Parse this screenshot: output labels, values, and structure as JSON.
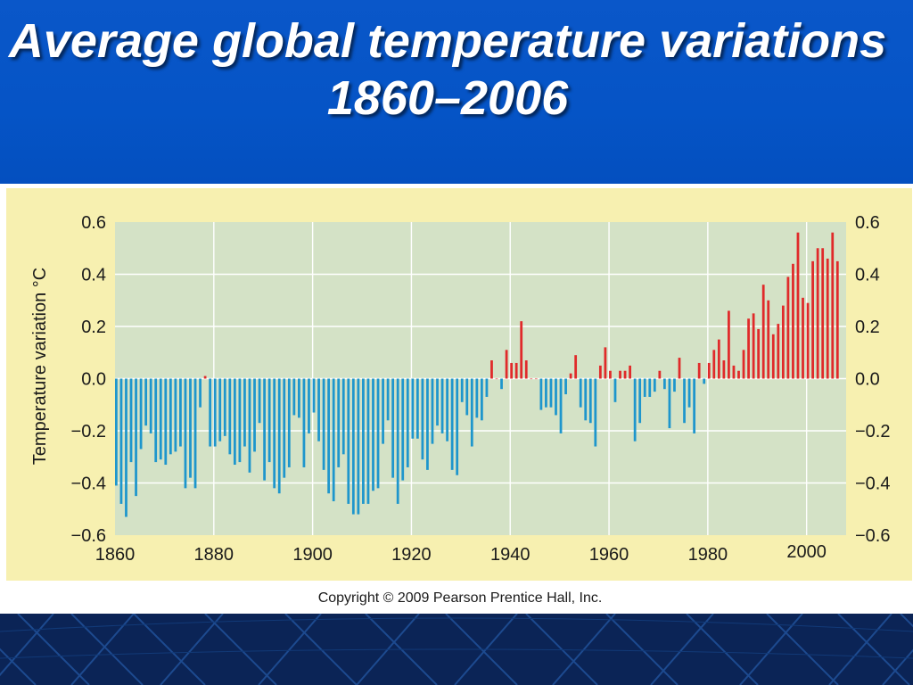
{
  "title": "Average global temperature variations 1860–2006",
  "copyright": "Copyright © 2009 Pearson Prentice Hall, Inc.",
  "colors": {
    "header_blue": "#0554c6",
    "chart_background": "#f7f0b0",
    "plot_background": "#d4e2c6",
    "negative_bar": "#1e96cc",
    "positive_bar": "#e02a2a"
  },
  "chart_data": {
    "type": "bar",
    "title": "",
    "xlabel": "",
    "ylabel": "Temperature variation °C",
    "xlim": [
      1860,
      2008
    ],
    "ylim": [
      -0.6,
      0.6
    ],
    "grid": true,
    "x_ticks_bottom": [
      1860,
      1880,
      1900,
      1920,
      1940,
      1960,
      1980
    ],
    "x_tick_extra": 2000,
    "y_ticks": [
      "0.6",
      "0.4",
      "0.2",
      "0.0",
      "−0.2",
      "−0.4",
      "−0.6"
    ],
    "y_tick_values": [
      0.6,
      0.4,
      0.2,
      0.0,
      -0.2,
      -0.4,
      -0.6
    ],
    "years": [
      1860,
      1861,
      1862,
      1863,
      1864,
      1865,
      1866,
      1867,
      1868,
      1869,
      1870,
      1871,
      1872,
      1873,
      1874,
      1875,
      1876,
      1877,
      1878,
      1879,
      1880,
      1881,
      1882,
      1883,
      1884,
      1885,
      1886,
      1887,
      1888,
      1889,
      1890,
      1891,
      1892,
      1893,
      1894,
      1895,
      1896,
      1897,
      1898,
      1899,
      1900,
      1901,
      1902,
      1903,
      1904,
      1905,
      1906,
      1907,
      1908,
      1909,
      1910,
      1911,
      1912,
      1913,
      1914,
      1915,
      1916,
      1917,
      1918,
      1919,
      1920,
      1921,
      1922,
      1923,
      1924,
      1925,
      1926,
      1927,
      1928,
      1929,
      1930,
      1931,
      1932,
      1933,
      1934,
      1935,
      1936,
      1937,
      1938,
      1939,
      1940,
      1941,
      1942,
      1943,
      1944,
      1945,
      1946,
      1947,
      1948,
      1949,
      1950,
      1951,
      1952,
      1953,
      1954,
      1955,
      1956,
      1957,
      1958,
      1959,
      1960,
      1961,
      1962,
      1963,
      1964,
      1965,
      1966,
      1967,
      1968,
      1969,
      1970,
      1971,
      1972,
      1973,
      1974,
      1975,
      1976,
      1977,
      1978,
      1979,
      1980,
      1981,
      1982,
      1983,
      1984,
      1985,
      1986,
      1987,
      1988,
      1989,
      1990,
      1991,
      1992,
      1993,
      1994,
      1995,
      1996,
      1997,
      1998,
      1999,
      2000,
      2001,
      2002,
      2003,
      2004,
      2005,
      2006
    ],
    "values": [
      -0.41,
      -0.48,
      -0.53,
      -0.32,
      -0.45,
      -0.27,
      -0.18,
      -0.21,
      -0.32,
      -0.31,
      -0.33,
      -0.29,
      -0.28,
      -0.26,
      -0.42,
      -0.38,
      -0.42,
      -0.11,
      0.01,
      -0.26,
      -0.26,
      -0.24,
      -0.22,
      -0.29,
      -0.33,
      -0.32,
      -0.26,
      -0.36,
      -0.28,
      -0.17,
      -0.39,
      -0.32,
      -0.42,
      -0.44,
      -0.38,
      -0.34,
      -0.14,
      -0.15,
      -0.34,
      -0.21,
      -0.13,
      -0.24,
      -0.35,
      -0.44,
      -0.47,
      -0.34,
      -0.29,
      -0.48,
      -0.52,
      -0.52,
      -0.48,
      -0.48,
      -0.43,
      -0.42,
      -0.25,
      -0.16,
      -0.38,
      -0.48,
      -0.39,
      -0.34,
      -0.23,
      -0.23,
      -0.31,
      -0.35,
      -0.25,
      -0.18,
      -0.21,
      -0.24,
      -0.35,
      -0.37,
      -0.09,
      -0.14,
      -0.26,
      -0.15,
      -0.16,
      -0.07,
      0.07,
      0.0,
      -0.04,
      0.11,
      0.06,
      0.06,
      0.22,
      0.07,
      0.0,
      0.0,
      -0.12,
      -0.11,
      -0.11,
      -0.14,
      -0.21,
      -0.06,
      0.02,
      0.09,
      -0.11,
      -0.16,
      -0.17,
      -0.26,
      0.05,
      0.12,
      0.03,
      -0.09,
      0.03,
      0.03,
      0.05,
      -0.24,
      -0.17,
      -0.07,
      -0.07,
      -0.05,
      0.03,
      -0.04,
      -0.19,
      -0.05,
      0.08,
      -0.17,
      -0.11,
      -0.21,
      0.06,
      -0.02,
      0.06,
      0.11,
      0.15,
      0.07,
      0.26,
      0.05,
      0.03,
      0.11,
      0.23,
      0.25,
      0.19,
      0.36,
      0.3,
      0.17,
      0.21,
      0.28,
      0.39,
      0.44,
      0.56,
      0.31,
      0.29,
      0.45,
      0.5,
      0.5,
      0.46,
      0.56,
      0.45
    ]
  }
}
